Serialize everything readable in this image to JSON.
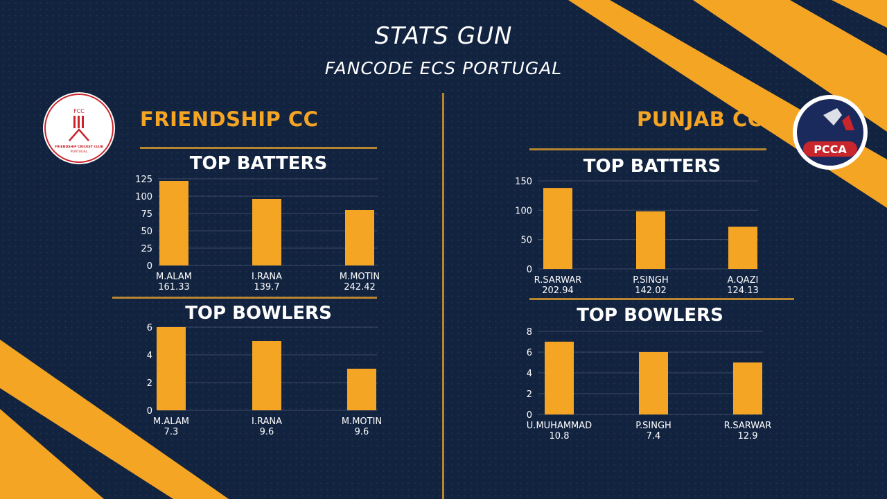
{
  "header": {
    "title": "STATS GUN",
    "subtitle": "FANCODE ECS PORTUGAL"
  },
  "colors": {
    "background": "#122340",
    "accent": "#f5a524",
    "divider": "#b8862f",
    "bar": "#f5a524"
  },
  "teams": [
    {
      "name": "FRIENDSHIP CC",
      "logo_text": {
        "initials": "FCC",
        "line1": "FRIENDSHIP CRICKET CLUB",
        "line2": "PORTUGAL"
      }
    },
    {
      "name": "PUNJAB CC",
      "logo_text": {
        "initials": "PCCA"
      }
    }
  ],
  "chart_data": [
    {
      "type": "bar",
      "team": "FRIENDSHIP CC",
      "title": "TOP BATTERS",
      "categories": [
        "M.ALAM",
        "I.RANA",
        "M.MOTIN"
      ],
      "sublabels": [
        "161.33",
        "139.7",
        "242.42"
      ],
      "values": [
        122,
        96,
        80
      ],
      "yticks": [
        0,
        25,
        50,
        75,
        100,
        125
      ],
      "ylim": [
        0,
        125
      ],
      "grid": true
    },
    {
      "type": "bar",
      "team": "FRIENDSHIP CC",
      "title": "TOP BOWLERS",
      "categories": [
        "M.ALAM",
        "I.RANA",
        "M.MOTIN"
      ],
      "sublabels": [
        "7.3",
        "9.6",
        "9.6"
      ],
      "values": [
        6,
        5,
        3
      ],
      "yticks": [
        0,
        2,
        4,
        6
      ],
      "ylim": [
        0,
        6
      ],
      "grid": true
    },
    {
      "type": "bar",
      "team": "PUNJAB CC",
      "title": "TOP BATTERS",
      "categories": [
        "R.SARWAR",
        "P.SINGH",
        "A.QAZI"
      ],
      "sublabels": [
        "202.94",
        "142.02",
        "124.13"
      ],
      "values": [
        138,
        98,
        72
      ],
      "yticks": [
        0,
        50,
        100,
        150
      ],
      "ylim": [
        0,
        150
      ],
      "grid": true
    },
    {
      "type": "bar",
      "team": "PUNJAB CC",
      "title": "TOP BOWLERS",
      "categories": [
        "U.MUHAMMAD",
        "P.SINGH",
        "R.SARWAR"
      ],
      "sublabels": [
        "10.8",
        "7.4",
        "12.9"
      ],
      "values": [
        7,
        6,
        5
      ],
      "yticks": [
        0,
        2,
        4,
        6,
        8
      ],
      "ylim": [
        0,
        8
      ],
      "grid": true
    }
  ]
}
